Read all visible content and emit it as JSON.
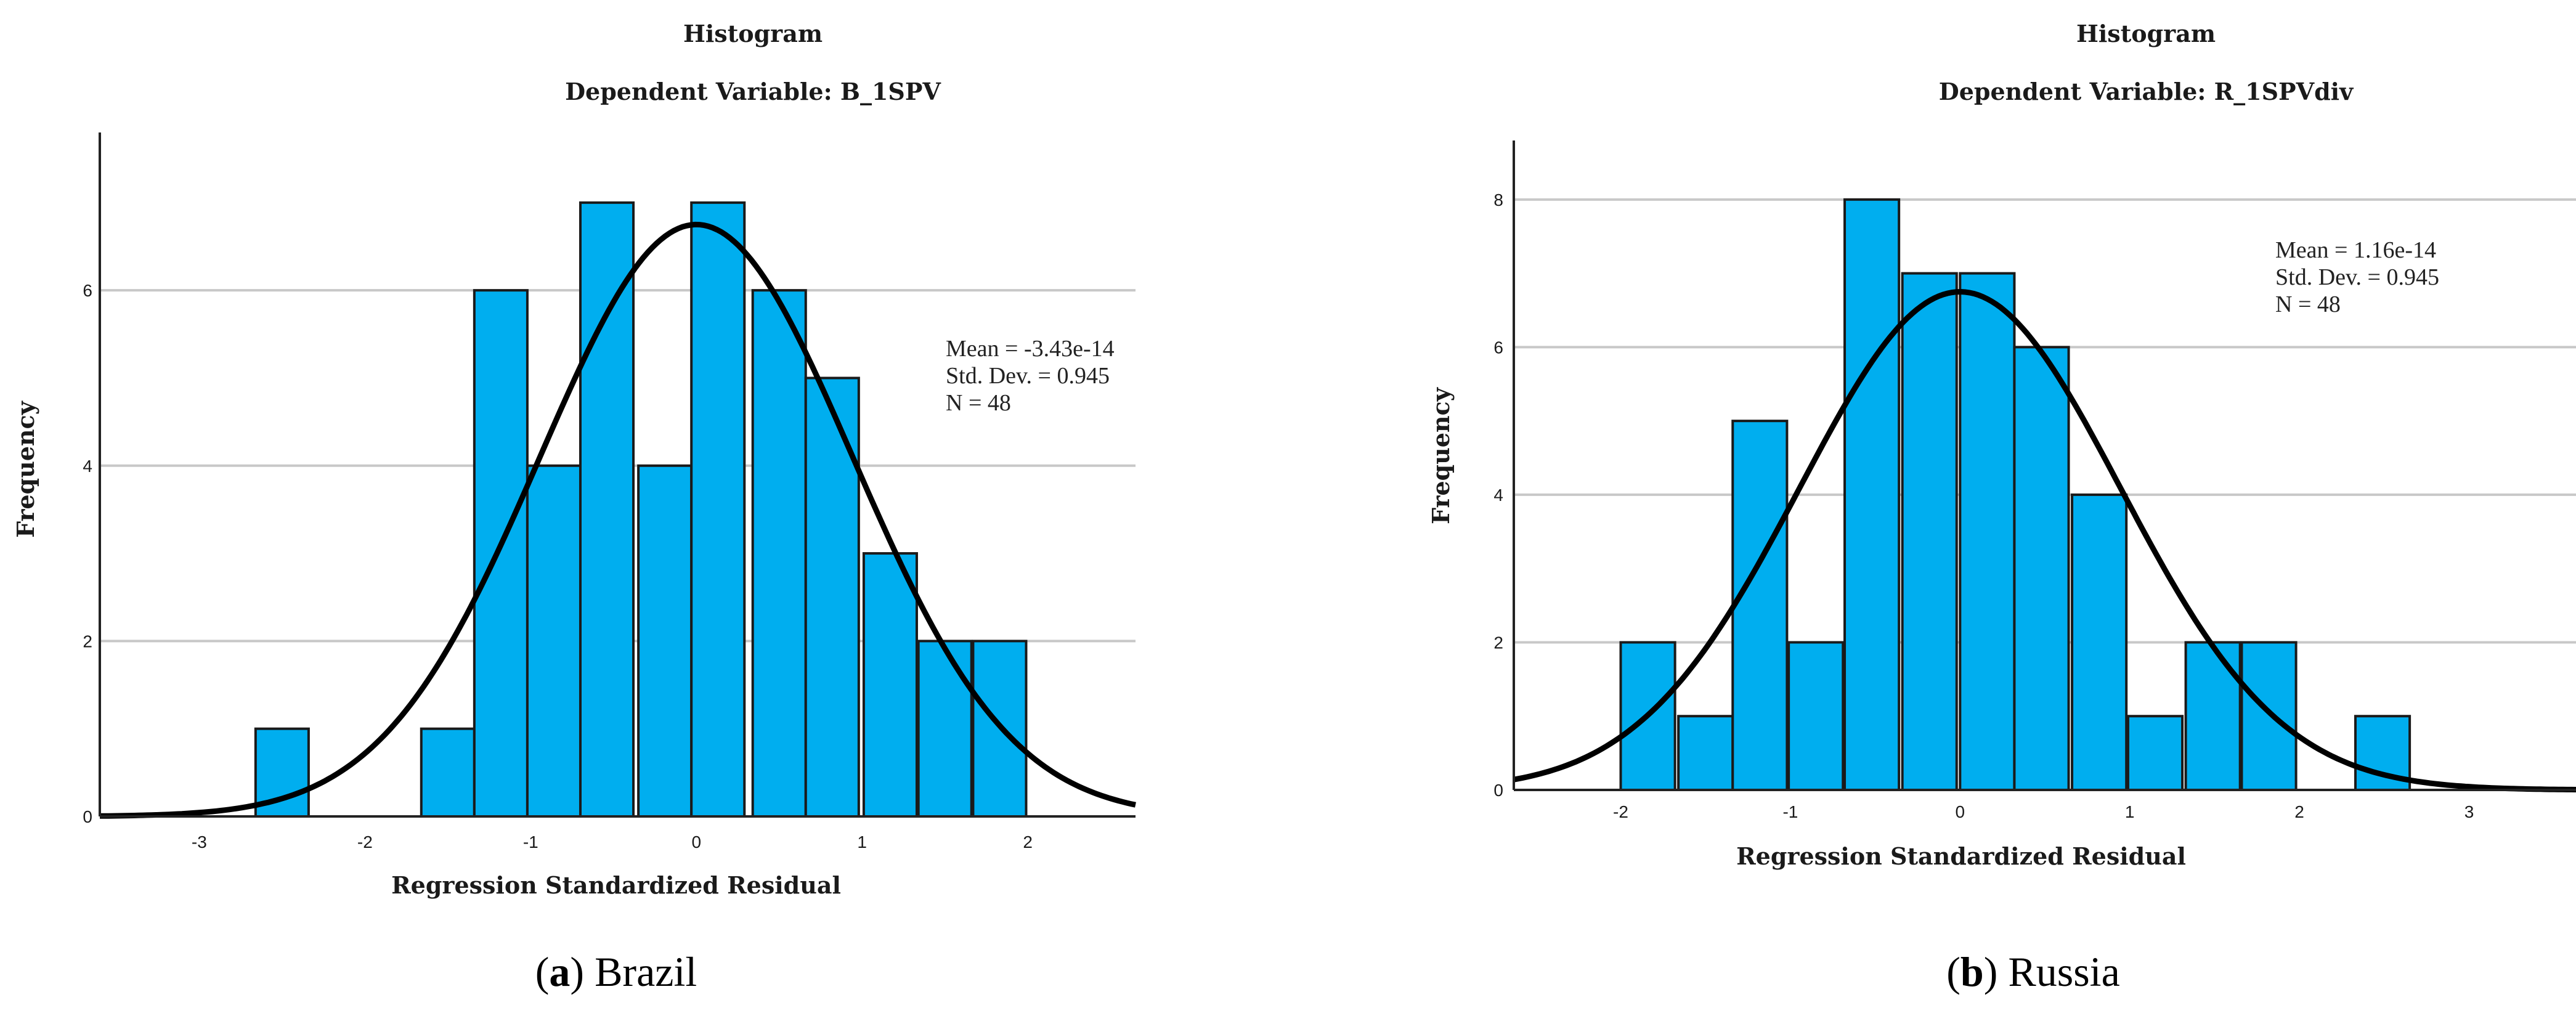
{
  "colors": {
    "bar_fill": "#00aeef",
    "bar_stroke": "#1a1a1a",
    "curve": "#000000",
    "grid": "#c8c8c8",
    "axis": "#222222"
  },
  "chart_data": [
    {
      "id": "brazil",
      "type": "bar",
      "title": "Histogram",
      "subtitle": "Dependent Variable: B_1SPV",
      "xlabel": "Regression Standardized Residual",
      "ylabel": "Frequency",
      "xlim": [
        -3.6,
        2.65
      ],
      "ylim": [
        0,
        7.8
      ],
      "xticks": [
        -3,
        -2,
        -1,
        0,
        1,
        2
      ],
      "yticks": [
        0,
        2,
        4,
        6
      ],
      "bin_width": 0.32,
      "bins": [
        {
          "start": -2.66,
          "count": 1
        },
        {
          "start": -1.66,
          "count": 1
        },
        {
          "start": -1.34,
          "count": 6
        },
        {
          "start": -1.02,
          "count": 4
        },
        {
          "start": -0.7,
          "count": 7
        },
        {
          "start": -0.35,
          "count": 4
        },
        {
          "start": -0.03,
          "count": 7
        },
        {
          "start": 0.34,
          "count": 6
        },
        {
          "start": 0.66,
          "count": 5
        },
        {
          "start": 1.01,
          "count": 3
        },
        {
          "start": 1.34,
          "count": 2
        },
        {
          "start": 1.67,
          "count": 2
        }
      ],
      "curve": {
        "mean": 0,
        "sd": 0.945,
        "peak": 6.75
      },
      "stats": [
        "Mean = -3.43e-14",
        "Std. Dev. = 0.945",
        "N = 48"
      ],
      "caption_letter": "a",
      "caption_text": "Brazil"
    },
    {
      "id": "russia",
      "type": "bar",
      "title": "Histogram",
      "subtitle": "Dependent Variable: R_1SPVdiv",
      "xlabel": "Regression Standardized Residual",
      "ylabel": "Frequency",
      "xlim": [
        -2.63,
        3.63
      ],
      "ylim": [
        0,
        8.8
      ],
      "xticks": [
        -2,
        -1,
        0,
        1,
        2,
        3
      ],
      "yticks": [
        0,
        2,
        4,
        6,
        8
      ],
      "bin_width": 0.32,
      "bins": [
        {
          "start": -2.0,
          "count": 2
        },
        {
          "start": -1.66,
          "count": 1
        },
        {
          "start": -1.34,
          "count": 5
        },
        {
          "start": -1.01,
          "count": 2
        },
        {
          "start": -0.68,
          "count": 8
        },
        {
          "start": -0.34,
          "count": 7
        },
        {
          "start": 0.0,
          "count": 7
        },
        {
          "start": 0.32,
          "count": 6
        },
        {
          "start": 0.66,
          "count": 4
        },
        {
          "start": 0.99,
          "count": 1
        },
        {
          "start": 1.33,
          "count": 2
        },
        {
          "start": 1.66,
          "count": 2
        },
        {
          "start": 2.33,
          "count": 1
        }
      ],
      "curve": {
        "mean": 0,
        "sd": 0.945,
        "peak": 6.75
      },
      "stats": [
        "Mean = 1.16e-14",
        "Std. Dev. = 0.945",
        "N = 48"
      ],
      "caption_letter": "b",
      "caption_text": "Russia"
    }
  ]
}
